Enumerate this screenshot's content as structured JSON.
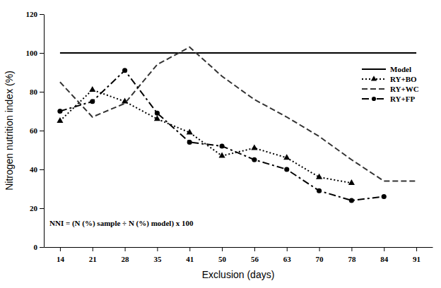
{
  "chart_data": {
    "type": "line",
    "x_label": "Exclusion (days)",
    "y_label": "Nitrogen nutrition index (%)",
    "annotation": "NNI = (N (%) sample ÷ N (%) model) x 100",
    "categories": [
      14,
      21,
      28,
      35,
      41,
      50,
      56,
      63,
      70,
      78,
      84,
      91
    ],
    "series": [
      {
        "name": "Model",
        "color": "#000000",
        "line_style": "solid",
        "marker": "none",
        "values": [
          100,
          100,
          100,
          100,
          100,
          100,
          100,
          100,
          100,
          100,
          100,
          100
        ]
      },
      {
        "name": "RY+BO",
        "color": "#000000",
        "line_style": "dotted",
        "marker": "triangle",
        "values": [
          65,
          81,
          75,
          66,
          59,
          47,
          51,
          46,
          36,
          33,
          null,
          null
        ]
      },
      {
        "name": "RY+WC",
        "color": "#333333",
        "line_style": "dashed",
        "marker": "none",
        "values": [
          85,
          67,
          74,
          94,
          103,
          88,
          76,
          67,
          57,
          45,
          34,
          34
        ]
      },
      {
        "name": "RY+FP",
        "color": "#000000",
        "line_style": "dashdot",
        "marker": "circle",
        "values": [
          70,
          75,
          91,
          69,
          54,
          52,
          45,
          40,
          29,
          24,
          26,
          null
        ]
      }
    ],
    "ylim": [
      0,
      120
    ],
    "yticks": [
      0,
      20,
      40,
      60,
      80,
      100,
      120
    ],
    "grid": false,
    "legend": "right"
  }
}
